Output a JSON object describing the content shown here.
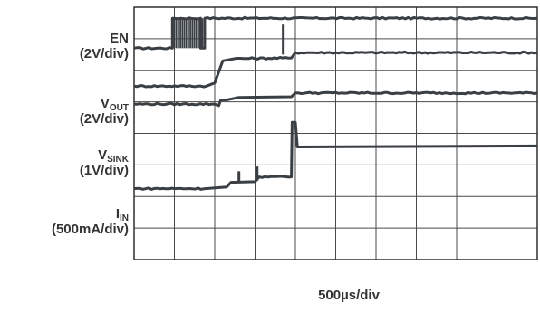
{
  "channels": [
    {
      "name": "EN",
      "sub": "",
      "scale": "(2V/div)",
      "color": "#3a3f44"
    },
    {
      "name": "V",
      "sub": "OUT",
      "scale": "(2V/div)",
      "color": "#3a3f44"
    },
    {
      "name": "V",
      "sub": "SINK",
      "scale": "(1V/div)",
      "color": "#3a3f44"
    },
    {
      "name": "I",
      "sub": "IN",
      "scale": "(500mA/div)",
      "color": "#3a3f44"
    }
  ],
  "time_scale": "500µs/div",
  "chart_data": {
    "type": "line",
    "title": "",
    "xlabel": "500µs/div",
    "ylabel": "",
    "grid": true,
    "x_divisions": 10,
    "y_divisions": 8,
    "x_units": "div",
    "y_units": "div",
    "xlim": [
      0,
      10
    ],
    "ylim": [
      0,
      8
    ],
    "series": [
      {
        "name": "EN",
        "color": "#3a3f44",
        "points": [
          [
            0,
            6.7
          ],
          [
            0.95,
            6.7
          ],
          [
            0.95,
            7.65
          ],
          [
            1.65,
            7.65
          ],
          [
            1.65,
            6.7
          ],
          [
            1.75,
            6.7
          ],
          [
            1.75,
            7.65
          ],
          [
            10,
            7.65
          ]
        ],
        "spikes": [
          [
            3.7,
            7.45,
            6.5
          ]
        ]
      },
      {
        "name": "VOUT",
        "color": "#3a3f44",
        "points": [
          [
            0,
            5.5
          ],
          [
            1.8,
            5.5
          ],
          [
            2.0,
            5.6
          ],
          [
            2.2,
            6.3
          ],
          [
            2.5,
            6.37
          ],
          [
            3.9,
            6.39
          ],
          [
            4.0,
            6.56
          ],
          [
            10,
            6.56
          ]
        ]
      },
      {
        "name": "VSINK",
        "color": "#3a3f44",
        "points": [
          [
            0,
            4.93
          ],
          [
            2.0,
            4.93
          ],
          [
            2.1,
            4.88
          ],
          [
            2.15,
            5.06
          ],
          [
            2.3,
            5.06
          ],
          [
            2.6,
            5.14
          ],
          [
            3.9,
            5.16
          ],
          [
            4.0,
            5.28
          ],
          [
            10,
            5.28
          ]
        ]
      },
      {
        "name": "IN",
        "color": "#3a3f44",
        "points": [
          [
            0,
            2.25
          ],
          [
            1.8,
            2.25
          ],
          [
            2.3,
            2.3
          ],
          [
            2.4,
            2.45
          ],
          [
            3.0,
            2.47
          ],
          [
            3.1,
            2.62
          ],
          [
            3.9,
            2.62
          ],
          [
            3.92,
            4.35
          ],
          [
            4.0,
            4.35
          ],
          [
            4.05,
            3.57
          ],
          [
            10,
            3.6
          ]
        ],
        "spikes": [
          [
            2.6,
            2.45,
            2.8
          ],
          [
            3.05,
            2.5,
            2.95
          ]
        ]
      }
    ]
  }
}
